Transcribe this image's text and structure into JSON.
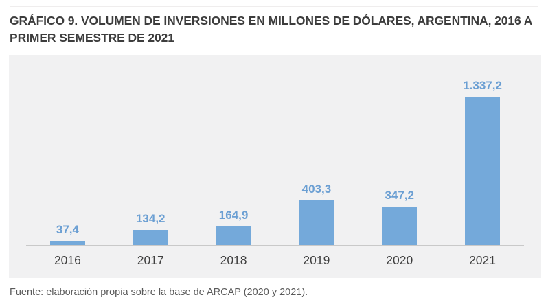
{
  "header": {
    "title": "GRÁFICO 9. VOLUMEN DE INVERSIONES EN MILLONES DE DÓLARES, ARGENTINA, 2016 A PRIMER SEMESTRE DE 2021"
  },
  "chart_data": {
    "type": "bar",
    "title": "GRÁFICO 9. VOLUMEN DE INVERSIONES EN MILLONES DE DÓLARES, ARGENTINA, 2016 A PRIMER SEMESTRE DE 2021",
    "categories": [
      "2016",
      "2017",
      "2018",
      "2019",
      "2020",
      "2021"
    ],
    "values": [
      37.4,
      134.2,
      164.9,
      403.3,
      347.2,
      1337.2
    ],
    "value_labels": [
      "37,4",
      "134,2",
      "164,9",
      "403,3",
      "347,2",
      "1.337,2"
    ],
    "xlabel": "",
    "ylabel": "",
    "ylim": [
      0,
      1400
    ],
    "grid": false,
    "legend_position": "none",
    "bar_color": "#74a9da",
    "value_label_color": "#6b9fd3",
    "panel_background": "#f1f1f2",
    "axis_line_color": "#c9c9c9"
  },
  "footer": {
    "source_note": "Fuente: elaboración propia sobre la base de ARCAP (2020 y 2021)."
  }
}
